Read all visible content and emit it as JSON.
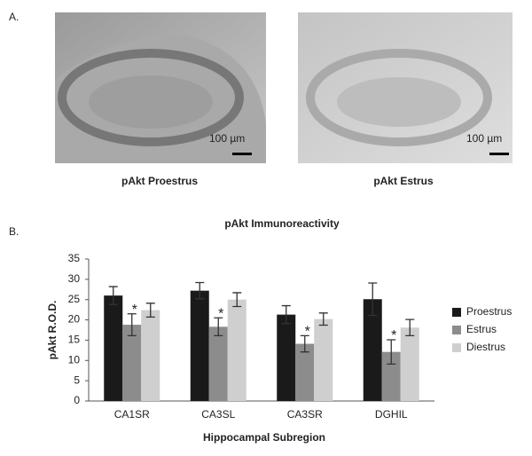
{
  "figure": {
    "panel_a_label": "A.",
    "panel_b_label": "B.",
    "images": [
      {
        "caption": "pAkt Proestrus",
        "scale_bar": "100 µm"
      },
      {
        "caption": "pAkt Estrus",
        "scale_bar": "100 µm"
      }
    ]
  },
  "chart_data": {
    "type": "bar",
    "title": "pAkt Immunoreactivity",
    "x_label": "Hippocampal Subregion",
    "y_label": "pAkt R.O.D.",
    "categories": [
      "CA1SR",
      "CA3SL",
      "CA3SR",
      "DGHIL"
    ],
    "series": [
      {
        "name": "Proestrus",
        "color": "#1a1a1a",
        "values": [
          26,
          27.2,
          21.3,
          25.1
        ],
        "errors": [
          2.2,
          2,
          2.2,
          4
        ]
      },
      {
        "name": "Estrus",
        "color": "#8c8c8c",
        "values": [
          18.8,
          18.3,
          14.1,
          12.1
        ],
        "errors": [
          2.7,
          2.2,
          2,
          3
        ],
        "significance": [
          "*",
          "*",
          "*",
          "*"
        ]
      },
      {
        "name": "Diestrus",
        "color": "#cfcfcf",
        "values": [
          22.4,
          25,
          20.2,
          18.1
        ],
        "errors": [
          1.7,
          1.7,
          1.5,
          2
        ]
      }
    ],
    "ylim": [
      0,
      35
    ],
    "yticks": [
      0,
      5,
      10,
      15,
      20,
      25,
      30,
      35
    ],
    "legend": "right"
  }
}
